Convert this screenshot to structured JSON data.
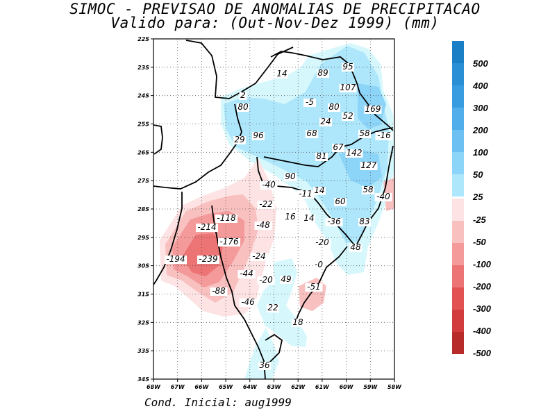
{
  "header": {
    "title": "SIMOC - PREVISAO DE ANOMALIAS DE PRECIPITACAO",
    "subtitle": "Valido para: (Out-Nov-Dez 1999) (mm)"
  },
  "footer": {
    "cond_label": "Cond. Inicial: aug1999"
  },
  "map": {
    "lat_ticks": [
      "22S",
      "23S",
      "24S",
      "25S",
      "26S",
      "27S",
      "28S",
      "29S",
      "30S",
      "31S",
      "32S",
      "33S",
      "34S"
    ],
    "lon_ticks": [
      "68W",
      "67W",
      "66W",
      "65W",
      "64W",
      "63W",
      "62W",
      "61W",
      "60W",
      "59W",
      "58W"
    ],
    "colors": {
      "c600": "#1a7fc5",
      "c500": "#2b8fd6",
      "c400": "#3a9ce0",
      "c300": "#52aeea",
      "c200": "#6cc0f2",
      "c100": "#8cd4f8",
      "c50": "#aee7fb",
      "c25": "#d6f8fd",
      "n25": "#fde3e3",
      "n50": "#f9c0c0",
      "n100": "#f49a9a",
      "n200": "#ec7474",
      "n300": "#e25252",
      "n400": "#d23c3c",
      "n600": "#b72b2b"
    },
    "anomaly_labels": [
      {
        "text": "14"
      },
      {
        "text": "89"
      },
      {
        "text": "95"
      },
      {
        "text": "107"
      },
      {
        "text": "2"
      },
      {
        "text": "80"
      },
      {
        "text": "-5"
      },
      {
        "text": "80"
      },
      {
        "text": "52"
      },
      {
        "text": "169"
      },
      {
        "text": "24"
      },
      {
        "text": "96"
      },
      {
        "text": "68"
      },
      {
        "text": "58"
      },
      {
        "text": "-16"
      },
      {
        "text": "29"
      },
      {
        "text": "67"
      },
      {
        "text": "142"
      },
      {
        "text": "81"
      },
      {
        "text": "127"
      },
      {
        "text": "90"
      },
      {
        "text": "-40"
      },
      {
        "text": "14"
      },
      {
        "text": "-11"
      },
      {
        "text": "58"
      },
      {
        "text": "-40"
      },
      {
        "text": "-22"
      },
      {
        "text": "60"
      },
      {
        "text": "-118"
      },
      {
        "text": "16"
      },
      {
        "text": "14"
      },
      {
        "text": "-36"
      },
      {
        "text": "83"
      },
      {
        "text": "-214"
      },
      {
        "text": "-48"
      },
      {
        "text": "-176"
      },
      {
        "text": "-20"
      },
      {
        "text": "48"
      },
      {
        "text": "-194"
      },
      {
        "text": "-239"
      },
      {
        "text": "-24"
      },
      {
        "text": "-0"
      },
      {
        "text": "-44"
      },
      {
        "text": "-20"
      },
      {
        "text": "49"
      },
      {
        "text": "-51"
      },
      {
        "text": "-88"
      },
      {
        "text": "-46"
      },
      {
        "text": "22"
      },
      {
        "text": "18"
      },
      {
        "text": "36"
      }
    ]
  },
  "colorbar": {
    "positive": [
      {
        "label": "500",
        "color": "#1a7fc5"
      },
      {
        "label": "400",
        "color": "#2b8fd6"
      },
      {
        "label": "300",
        "color": "#3a9ce0"
      },
      {
        "label": "200",
        "color": "#52aeea"
      },
      {
        "label": "100",
        "color": "#6cc0f2"
      },
      {
        "label": "50",
        "color": "#8cd4f8"
      },
      {
        "label": "25",
        "color": "#aee7fb"
      }
    ],
    "negative": [
      {
        "label": "-25",
        "color": "#fde3e3"
      },
      {
        "label": "-50",
        "color": "#f9c0c0"
      },
      {
        "label": "-100",
        "color": "#f49a9a"
      },
      {
        "label": "-200",
        "color": "#ec7474"
      },
      {
        "label": "-300",
        "color": "#e25252"
      },
      {
        "label": "-400",
        "color": "#d23c3c"
      },
      {
        "label": "-500",
        "color": "#b72b2b"
      }
    ]
  }
}
